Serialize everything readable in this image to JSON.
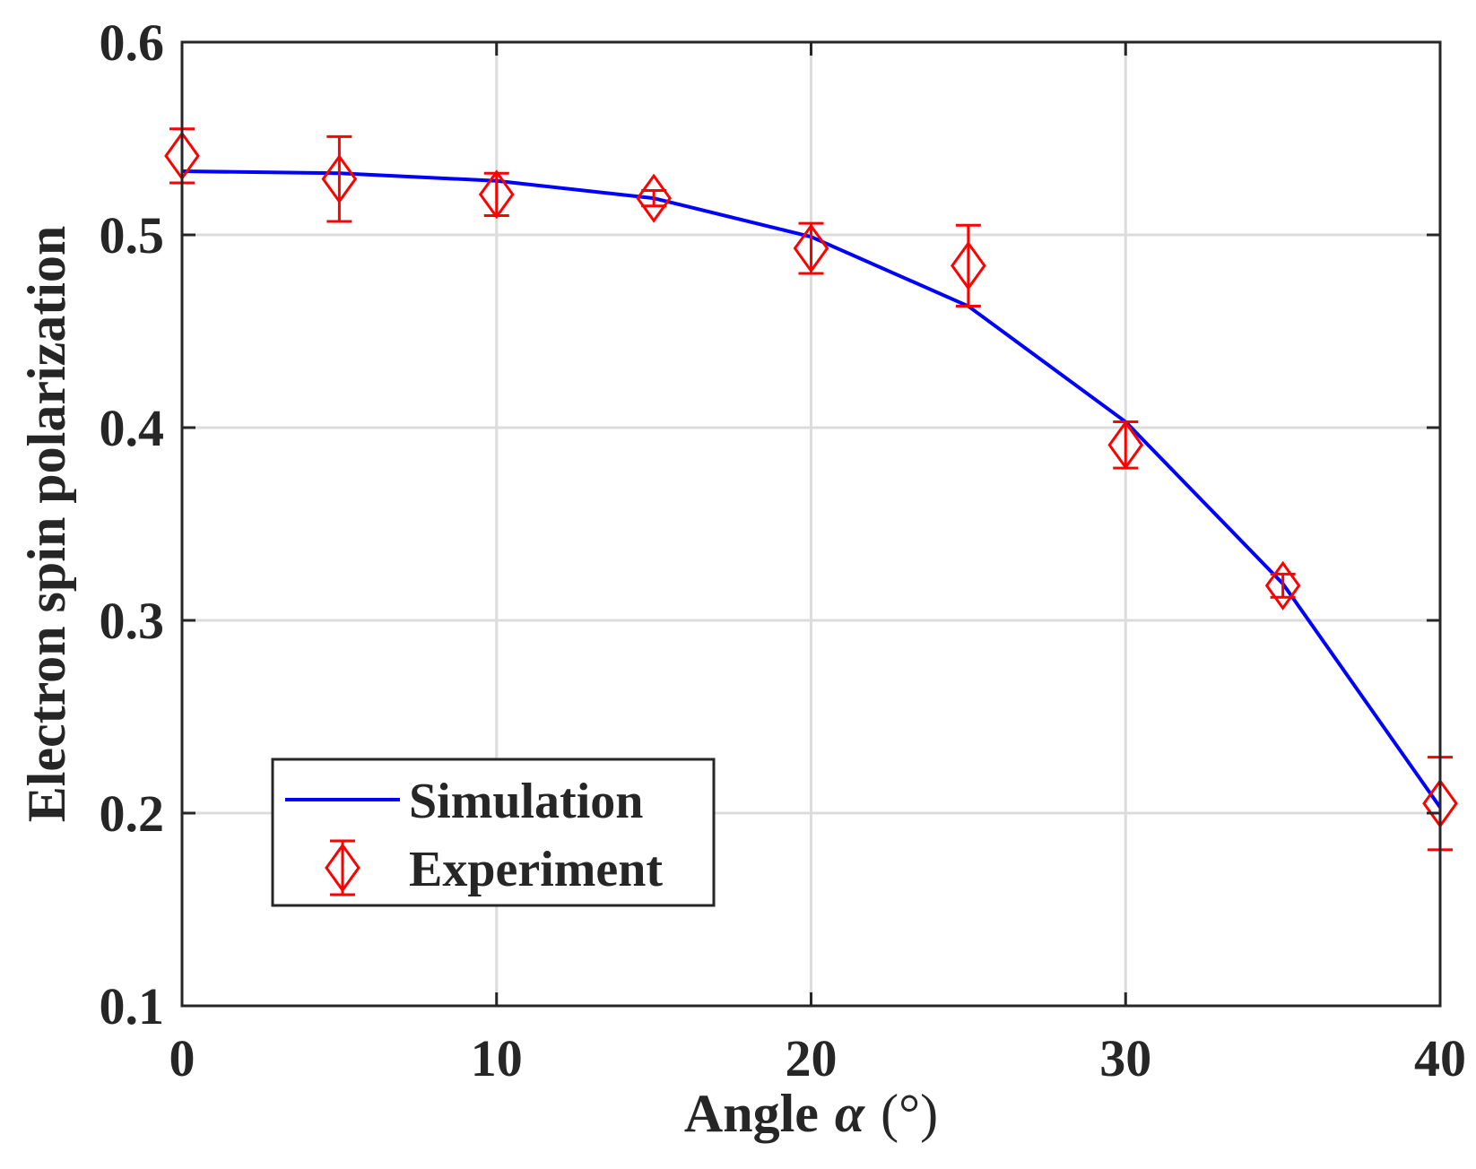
{
  "chart_data": {
    "type": "line",
    "title": "",
    "xlabel": "Angle",
    "xlabel_symbol": "α",
    "xlabel_unit": "(°)",
    "ylabel": "Electron spin polarization",
    "xlim": [
      0,
      40
    ],
    "ylim": [
      0.1,
      0.6
    ],
    "xticks": [
      0,
      10,
      20,
      30,
      40
    ],
    "xtick_labels": [
      "0",
      "10",
      "20",
      "30",
      "40"
    ],
    "yticks": [
      0.1,
      0.2,
      0.3,
      0.4,
      0.5,
      0.6
    ],
    "ytick_labels": [
      "0.1",
      "0.2",
      "0.3",
      "0.4",
      "0.5",
      "0.6"
    ],
    "grid": true,
    "legend_position": "bottom-left",
    "colors": {
      "simulation": "#0000ff",
      "experiment": "#ff0000",
      "grid": "#dcdcdc",
      "axis": "#262626"
    },
    "series": [
      {
        "name": "Simulation",
        "style": "line",
        "x": [
          0,
          5,
          10,
          15,
          20,
          25,
          30,
          35,
          40
        ],
        "y": [
          0.533,
          0.532,
          0.528,
          0.519,
          0.499,
          0.463,
          0.403,
          0.319,
          0.203
        ]
      },
      {
        "name": "Experiment",
        "style": "diamond-errorbar",
        "x": [
          0,
          5,
          10,
          15,
          20,
          25,
          30,
          35,
          40
        ],
        "y": [
          0.541,
          0.529,
          0.521,
          0.519,
          0.493,
          0.484,
          0.391,
          0.318,
          0.205
        ],
        "err": [
          0.014,
          0.022,
          0.011,
          0.004,
          0.013,
          0.021,
          0.012,
          0.006,
          0.024
        ]
      }
    ]
  }
}
